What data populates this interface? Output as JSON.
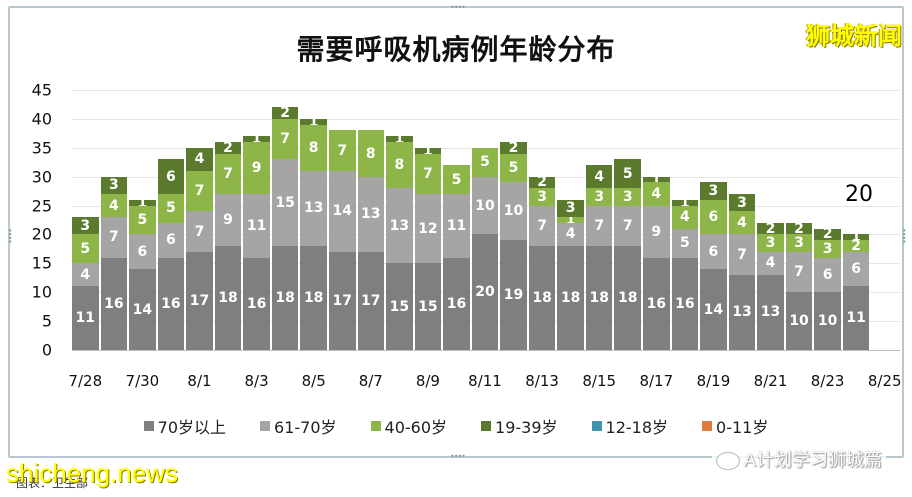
{
  "header": {
    "title": "需要呼吸机病例年龄分布",
    "brand": "狮城新闻"
  },
  "footer": {
    "wechat_label": "A计划学习狮城篇",
    "site_watermark": "shicheng.news",
    "source_text": "图表：卫生部"
  },
  "colors": {
    "age_70_plus": "#7f7f7f",
    "age_61_70": "#a5a5a5",
    "age_40_60": "#8db548",
    "age_19_39": "#5b7a2e",
    "age_12_18": "#3f94b0",
    "age_0_11": "#e07b39"
  },
  "chart_data": {
    "type": "bar",
    "stacked": true,
    "title": "需要呼吸机病例年龄分布",
    "xlabel": "",
    "ylabel": "",
    "ylim": [
      0,
      45
    ],
    "yticks": [
      0,
      5,
      10,
      15,
      20,
      25,
      30,
      35,
      40,
      45
    ],
    "grid": true,
    "legend_position": "bottom",
    "categories": [
      "7/28",
      "7/29",
      "7/30",
      "7/31",
      "8/1",
      "8/2",
      "8/3",
      "8/4",
      "8/5",
      "8/6",
      "8/7",
      "8/8",
      "8/9",
      "8/10",
      "8/11",
      "8/12",
      "8/13",
      "8/14",
      "8/15",
      "8/16",
      "8/17",
      "8/18",
      "8/19",
      "8/20",
      "8/21",
      "8/22",
      "8/23",
      "8/24",
      "8/25"
    ],
    "xtick_labels": [
      "7/28",
      "7/30",
      "8/1",
      "8/3",
      "8/5",
      "8/7",
      "8/9",
      "8/11",
      "8/13",
      "8/15",
      "8/17",
      "8/19",
      "8/21",
      "8/23",
      "8/25"
    ],
    "series": [
      {
        "name": "70岁以上",
        "color": "#7f7f7f",
        "values": [
          11,
          16,
          14,
          16,
          17,
          18,
          16,
          18,
          18,
          17,
          17,
          15,
          15,
          16,
          20,
          19,
          18,
          18,
          18,
          18,
          16,
          16,
          14,
          13,
          13,
          10,
          10,
          11,
          null
        ]
      },
      {
        "name": "61-70岁",
        "color": "#a5a5a5",
        "values": [
          4,
          7,
          6,
          6,
          7,
          9,
          11,
          15,
          13,
          14,
          13,
          13,
          12,
          11,
          10,
          10,
          7,
          4,
          7,
          7,
          9,
          5,
          6,
          7,
          4,
          7,
          6,
          6,
          null
        ]
      },
      {
        "name": "40-60岁",
        "color": "#8db548",
        "values": [
          5,
          4,
          5,
          5,
          7,
          7,
          9,
          7,
          8,
          7,
          8,
          8,
          7,
          5,
          5,
          5,
          3,
          1,
          3,
          3,
          4,
          4,
          6,
          4,
          3,
          3,
          3,
          2,
          null
        ]
      },
      {
        "name": "19-39岁",
        "color": "#5b7a2e",
        "values": [
          3,
          3,
          1,
          6,
          4,
          2,
          1,
          2,
          1,
          0,
          0,
          1,
          1,
          0,
          0,
          2,
          2,
          3,
          4,
          5,
          1,
          1,
          3,
          3,
          2,
          2,
          2,
          1,
          null
        ]
      },
      {
        "name": "12-18岁",
        "color": "#3f94b0",
        "values": [
          0,
          0,
          0,
          0,
          0,
          0,
          0,
          0,
          0,
          0,
          0,
          0,
          0,
          0,
          0,
          0,
          0,
          0,
          0,
          0,
          0,
          0,
          0,
          0,
          0,
          0,
          0,
          0,
          null
        ]
      },
      {
        "name": "0-11岁",
        "color": "#e07b39",
        "values": [
          0,
          0,
          0,
          0,
          0,
          0,
          0,
          0,
          0,
          0,
          0,
          0,
          0,
          0,
          0,
          0,
          0,
          0,
          0,
          0,
          0,
          0,
          0,
          0,
          0,
          0,
          0,
          0,
          null
        ]
      }
    ],
    "annotations": [
      {
        "text": "20",
        "x": "8/24",
        "note": "latest total"
      }
    ]
  },
  "legend": [
    {
      "label": "70岁以上",
      "color": "#7f7f7f"
    },
    {
      "label": "61-70岁",
      "color": "#a5a5a5"
    },
    {
      "label": "40-60岁",
      "color": "#8db548"
    },
    {
      "label": "19-39岁",
      "color": "#5b7a2e"
    },
    {
      "label": "12-18岁",
      "color": "#3f94b0"
    },
    {
      "label": "0-11岁",
      "color": "#e07b39"
    }
  ]
}
